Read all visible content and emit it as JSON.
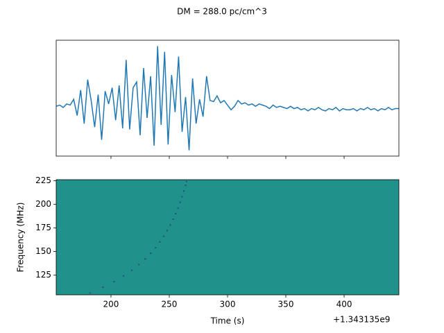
{
  "title": "DM = 288.0 pc/cm^3",
  "chart_data": [
    {
      "type": "line",
      "color": "#1f77b4",
      "xlim": [
        153,
        447
      ],
      "ylim": [
        -4.3,
        5.7
      ],
      "xticks": [
        200,
        250,
        300,
        350,
        400
      ],
      "xtick_labels": false,
      "x": [
        153,
        156,
        159,
        162,
        165,
        168,
        171,
        174,
        177,
        180,
        183,
        186,
        189,
        192,
        195,
        198,
        201,
        204,
        207,
        210,
        213,
        216,
        219,
        222,
        225,
        228,
        231,
        234,
        237,
        240,
        243,
        246,
        249,
        252,
        255,
        258,
        261,
        264,
        267,
        270,
        273,
        276,
        279,
        282,
        285,
        288,
        291,
        294,
        297,
        300,
        303,
        306,
        309,
        312,
        315,
        318,
        321,
        324,
        327,
        330,
        333,
        336,
        339,
        342,
        345,
        348,
        351,
        354,
        357,
        360,
        363,
        366,
        369,
        372,
        375,
        378,
        381,
        384,
        387,
        390,
        393,
        396,
        399,
        402,
        405,
        408,
        411,
        414,
        417,
        420,
        423,
        426,
        429,
        432,
        435,
        438,
        441,
        444,
        447
      ],
      "values": [
        0,
        0.1,
        -0.1,
        0.2,
        0.1,
        0.6,
        -0.8,
        1.4,
        -1.5,
        2.3,
        0.5,
        -1.8,
        1.0,
        -2.9,
        1.3,
        0.2,
        1.6,
        -1.2,
        1.8,
        -1.9,
        4.0,
        -2.0,
        1.6,
        2.1,
        -2.5,
        3.3,
        -1.0,
        2.6,
        -3.4,
        5.2,
        -1.6,
        4.7,
        -3.3,
        2.7,
        -0.5,
        4.3,
        -2.2,
        0.8,
        -3.8,
        2.4,
        -1.5,
        0.6,
        -0.9,
        2.6,
        0.5,
        0.4,
        0.9,
        0.3,
        0.5,
        0.1,
        -0.3,
        0.0,
        0.5,
        0.2,
        0.3,
        0.1,
        0.2,
        0.0,
        0.2,
        0.1,
        0.0,
        -0.2,
        0.1,
        -0.1,
        0.0,
        -0.1,
        -0.2,
        0.0,
        -0.2,
        -0.1,
        -0.3,
        -0.2,
        -0.4,
        -0.2,
        -0.3,
        -0.1,
        -0.3,
        -0.4,
        -0.2,
        -0.3,
        -0.1,
        -0.4,
        -0.2,
        -0.3,
        -0.3,
        -0.2,
        -0.4,
        -0.2,
        -0.3,
        -0.1,
        -0.3,
        -0.2,
        -0.4,
        -0.2,
        -0.3,
        -0.1,
        -0.3,
        -0.2,
        -0.2
      ]
    },
    {
      "type": "image",
      "background": "#21918c",
      "color": "#2c4a7a",
      "xlabel": "Time (s)",
      "ylabel": "Frequency (MHz)",
      "x_offset_label": "+1.343135e9",
      "xlim": [
        153,
        447
      ],
      "ylim": [
        104,
        226
      ],
      "xticks": [
        200,
        250,
        300,
        350,
        400
      ],
      "yticks": [
        125,
        150,
        175,
        200,
        225
      ],
      "x": [
        182.1,
        193.2,
        202.7,
        210.8,
        217.8,
        223.9,
        229.3,
        234.0,
        238.2,
        241.9,
        245.2,
        248.2,
        250.9,
        253.3,
        255.5,
        257.5,
        259.3,
        261.0,
        262.5,
        263.9,
        264.8
      ],
      "values": [
        106,
        112,
        118,
        124,
        130,
        136,
        142,
        148,
        154,
        160,
        166,
        172,
        178,
        184,
        190,
        196,
        202,
        208,
        214,
        220,
        224
      ]
    }
  ]
}
